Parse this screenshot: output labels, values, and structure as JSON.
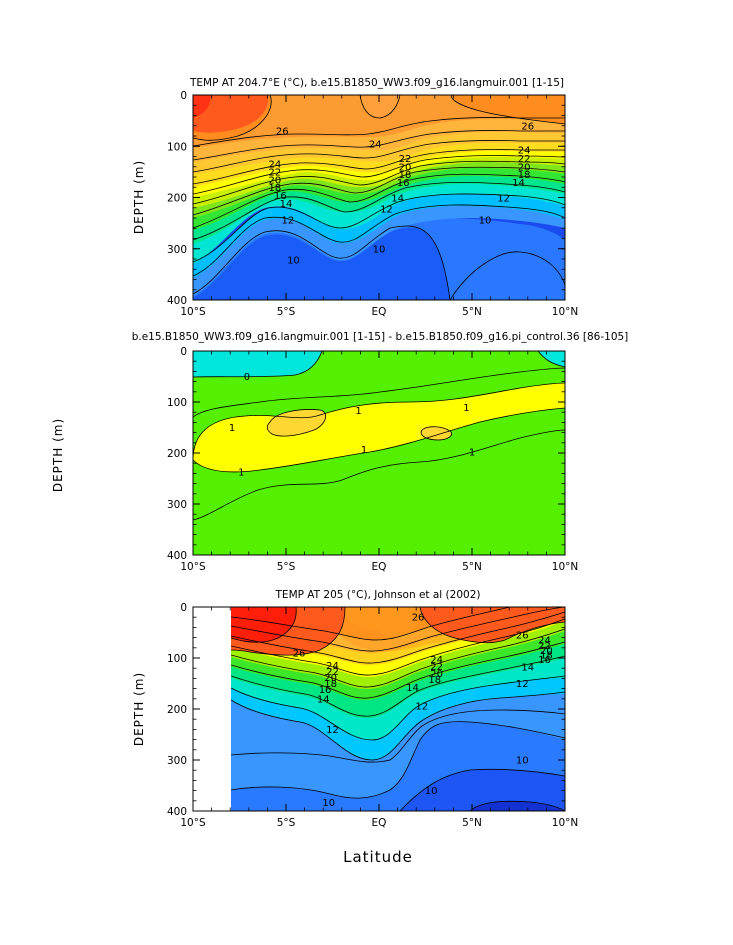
{
  "chart_data": [
    {
      "type": "contour",
      "title": "TEMP AT 204.7°E (°C), b.e15.B1850_WW3.f09_g16.langmuir.001 [1-15]",
      "ylabel": "DEPTH (m)",
      "xlabel": "",
      "x_range": [
        -10,
        10
      ],
      "y_range": [
        0,
        400
      ],
      "x_ticks": [
        "10°S",
        "5°S",
        "EQ",
        "5°N",
        "10°N"
      ],
      "y_ticks": [
        "0",
        "100",
        "200",
        "300",
        "400"
      ],
      "contour_labels": [
        {
          "text": "26",
          "lat": -5.2,
          "depth": 70
        },
        {
          "text": "26",
          "lat": 8.0,
          "depth": 60
        },
        {
          "text": "24",
          "lat": -5.6,
          "depth": 135
        },
        {
          "text": "24",
          "lat": -0.2,
          "depth": 96
        },
        {
          "text": "24",
          "lat": 7.8,
          "depth": 107
        },
        {
          "text": "22",
          "lat": -5.6,
          "depth": 150
        },
        {
          "text": "22",
          "lat": 1.4,
          "depth": 124
        },
        {
          "text": "22",
          "lat": 7.8,
          "depth": 124
        },
        {
          "text": "20",
          "lat": -5.6,
          "depth": 166
        },
        {
          "text": "20",
          "lat": 1.4,
          "depth": 140
        },
        {
          "text": "20",
          "lat": 7.8,
          "depth": 140
        },
        {
          "text": "18",
          "lat": -5.6,
          "depth": 180
        },
        {
          "text": "18",
          "lat": 1.4,
          "depth": 155
        },
        {
          "text": "18",
          "lat": 7.8,
          "depth": 155
        },
        {
          "text": "16",
          "lat": -5.3,
          "depth": 196
        },
        {
          "text": "16",
          "lat": 1.3,
          "depth": 171
        },
        {
          "text": "14",
          "lat": -5.0,
          "depth": 212
        },
        {
          "text": "14",
          "lat": 1.0,
          "depth": 201
        },
        {
          "text": "14",
          "lat": 7.5,
          "depth": 171
        },
        {
          "text": "12",
          "lat": -4.9,
          "depth": 244
        },
        {
          "text": "12",
          "lat": 0.4,
          "depth": 222
        },
        {
          "text": "12",
          "lat": 6.7,
          "depth": 201
        },
        {
          "text": "10",
          "lat": -4.6,
          "depth": 322
        },
        {
          "text": "10",
          "lat": 0.0,
          "depth": 300
        },
        {
          "text": "10",
          "lat": 5.7,
          "depth": 244
        }
      ]
    },
    {
      "type": "contour",
      "title": "b.e15.B1850_WW3.f09_g16.langmuir.001 [1-15] - b.e15.B1850.f09_g16.pi_control.36 [86-105]",
      "ylabel": "DEPTH (m)",
      "xlabel": "",
      "x_range": [
        -10,
        10
      ],
      "y_range": [
        0,
        400
      ],
      "x_ticks": [
        "10°S",
        "5°S",
        "EQ",
        "5°N",
        "10°N"
      ],
      "y_ticks": [
        "0",
        "100",
        "200",
        "300",
        "400"
      ],
      "contour_labels": [
        {
          "text": "0",
          "lat": -7.1,
          "depth": 50
        },
        {
          "text": "1",
          "lat": -7.9,
          "depth": 150
        },
        {
          "text": "1",
          "lat": -1.1,
          "depth": 117
        },
        {
          "text": "1",
          "lat": 4.7,
          "depth": 111
        },
        {
          "text": "1",
          "lat": -7.4,
          "depth": 237
        },
        {
          "text": "1",
          "lat": -0.8,
          "depth": 193
        },
        {
          "text": "1",
          "lat": 5.0,
          "depth": 198
        }
      ]
    },
    {
      "type": "contour",
      "title": "TEMP AT 205 (°C), Johnson et al (2002)",
      "ylabel": "DEPTH (m)",
      "xlabel": "Latitude",
      "x_range": [
        -10,
        10
      ],
      "y_range": [
        0,
        400
      ],
      "x_ticks": [
        "10°S",
        "5°S",
        "EQ",
        "5°N",
        "10°N"
      ],
      "y_ticks": [
        "0",
        "100",
        "200",
        "300",
        "400"
      ],
      "contour_labels": [
        {
          "text": "26",
          "lat": -4.3,
          "depth": 90
        },
        {
          "text": "26",
          "lat": 2.1,
          "depth": 20
        },
        {
          "text": "26",
          "lat": 7.7,
          "depth": 55
        },
        {
          "text": "24",
          "lat": -2.5,
          "depth": 115
        },
        {
          "text": "24",
          "lat": 3.1,
          "depth": 103
        },
        {
          "text": "22",
          "lat": -2.5,
          "depth": 126
        },
        {
          "text": "22",
          "lat": 3.1,
          "depth": 117
        },
        {
          "text": "20",
          "lat": -2.6,
          "depth": 138
        },
        {
          "text": "20",
          "lat": 3.1,
          "depth": 130
        },
        {
          "text": "18",
          "lat": -2.6,
          "depth": 150
        },
        {
          "text": "18",
          "lat": 3.0,
          "depth": 142
        },
        {
          "text": "16",
          "lat": -2.9,
          "depth": 162
        },
        {
          "text": "14",
          "lat": -3.0,
          "depth": 180
        },
        {
          "text": "14",
          "lat": 1.8,
          "depth": 158
        },
        {
          "text": "14",
          "lat": 8.0,
          "depth": 118
        },
        {
          "text": "12",
          "lat": -2.5,
          "depth": 240
        },
        {
          "text": "12",
          "lat": 2.3,
          "depth": 194
        },
        {
          "text": "12",
          "lat": 7.7,
          "depth": 150
        },
        {
          "text": "10",
          "lat": -2.7,
          "depth": 383
        },
        {
          "text": "10",
          "lat": 2.8,
          "depth": 360
        },
        {
          "text": "10",
          "lat": 7.7,
          "depth": 300
        },
        {
          "text": "24",
          "lat": 8.9,
          "depth": 65
        },
        {
          "text": "22",
          "lat": 8.9,
          "depth": 75
        },
        {
          "text": "20",
          "lat": 9.0,
          "depth": 85
        },
        {
          "text": "18",
          "lat": 9.0,
          "depth": 94
        },
        {
          "text": "16",
          "lat": 8.9,
          "depth": 103
        }
      ]
    }
  ]
}
